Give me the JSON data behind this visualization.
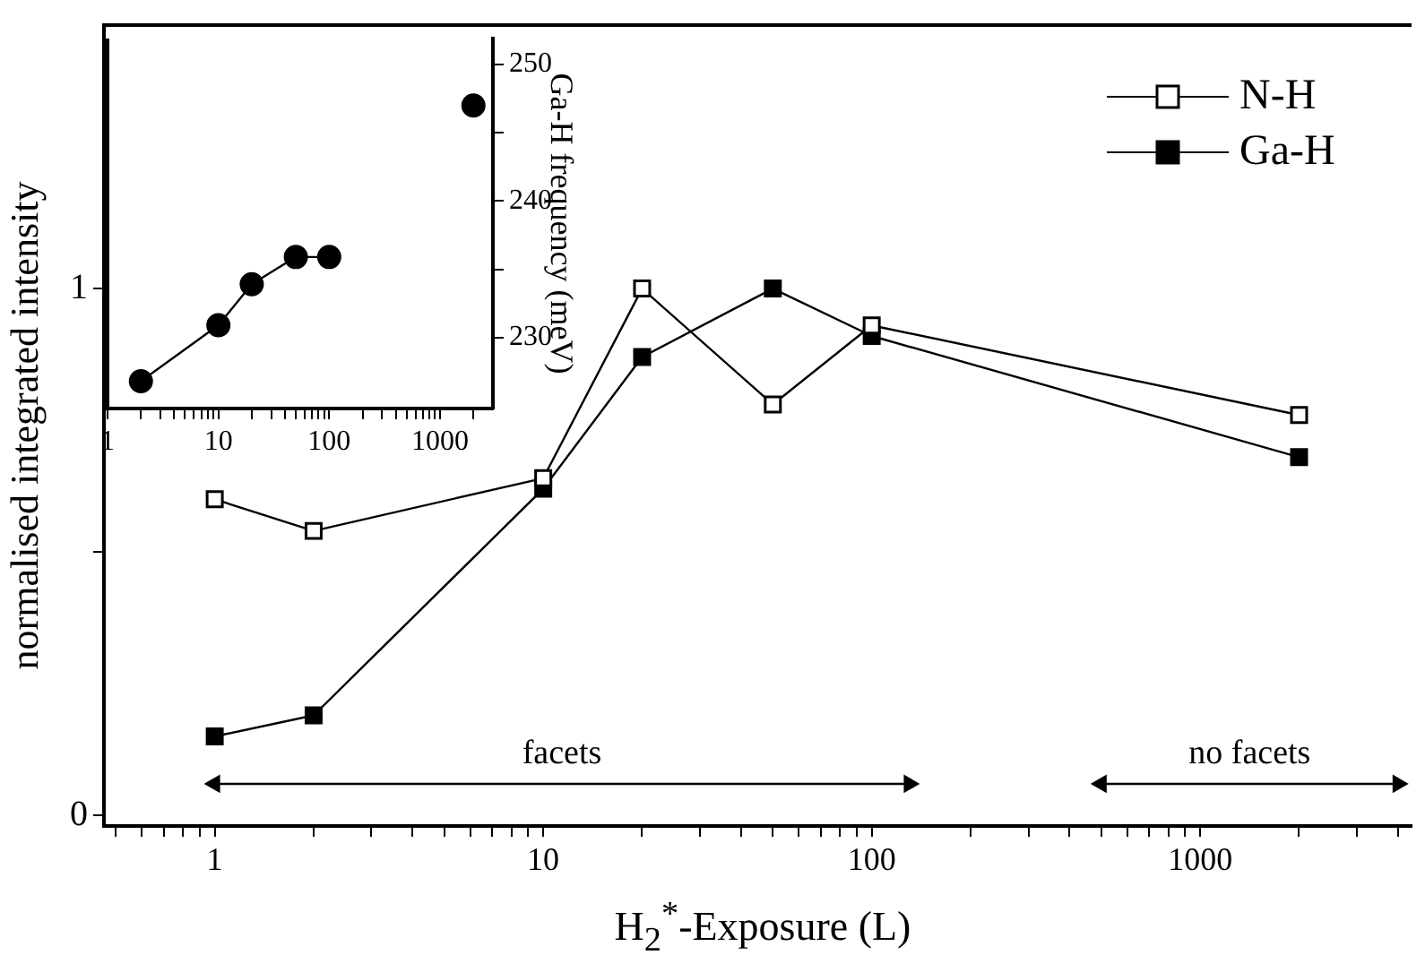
{
  "chart_data": [
    {
      "type": "line",
      "xlabel": "H$_{2}$$^{*}$-Exposure (L)",
      "ylabel": "normalised integrated intensity",
      "log": "x",
      "grid": false,
      "legend": "top right",
      "marker": "square",
      "x": [
        1,
        2,
        10,
        20,
        50,
        100,
        2000
      ],
      "series": [
        {
          "name": "N-H",
          "color": "#000000",
          "values": [
            0.6,
            0.54,
            0.64,
            1.0,
            0.78,
            0.93,
            0.76
          ]
        },
        {
          "name": "Ga-H",
          "color": "#000000",
          "values": [
            0.15,
            0.19,
            0.62,
            0.87,
            1.0,
            0.91,
            0.68
          ]
        },
        {
          "color": "#000000",
          "marker": "triangle",
          "x": [
            1,
            130
          ],
          "values": [
            0.06,
            0.06
          ]
        },
        {
          "color": "#000000",
          "marker": "triangle",
          "x": [
            500,
            4000
          ],
          "values": [
            0.06,
            0.06
          ]
        }
      ],
      "annotations": [
        {
          "text": "facets",
          "x": 11.4,
          "y": 0.06
        },
        {
          "text": "no facets",
          "x": 1414,
          "y": 0.06
        }
      ],
      "xlim": [
        0.46,
        4400
      ],
      "xticks": [
        {
          "value": 0.5,
          "label": null
        },
        {
          "value": 0.6,
          "label": null
        },
        {
          "value": 0.7,
          "label": null
        },
        {
          "value": 0.8,
          "label": null
        },
        {
          "value": 0.9,
          "label": null
        },
        1,
        {
          "value": 2,
          "label": null
        },
        {
          "value": 3,
          "label": null
        },
        {
          "value": 4,
          "label": null
        },
        {
          "value": 5,
          "label": null
        },
        {
          "value": 6,
          "label": null
        },
        {
          "value": 7,
          "label": null
        },
        {
          "value": 8,
          "label": null
        },
        {
          "value": 9,
          "label": null
        },
        10,
        {
          "value": 20,
          "label": null
        },
        {
          "value": 30,
          "label": null
        },
        {
          "value": 40,
          "label": null
        },
        {
          "value": 50,
          "label": null
        },
        {
          "value": 60,
          "label": null
        },
        {
          "value": 70,
          "label": null
        },
        {
          "value": 80,
          "label": null
        },
        {
          "value": 90,
          "label": null
        },
        100,
        {
          "value": 200,
          "label": null
        },
        {
          "value": 300,
          "label": null
        },
        {
          "value": 400,
          "label": null
        },
        {
          "value": 500,
          "label": null
        },
        {
          "value": 600,
          "label": null
        },
        {
          "value": 700,
          "label": null
        },
        {
          "value": 800,
          "label": null
        },
        {
          "value": 900,
          "label": null
        },
        1000,
        {
          "value": 2000,
          "label": null
        },
        {
          "value": 3000,
          "label": null
        },
        {
          "value": 4000,
          "label": null
        }
      ],
      "ylim": [
        -0.02,
        1.5
      ],
      "yticks": [
        0,
        {
          "value": 0.5,
          "label": null
        },
        1
      ]
    },
    {
      "type": "line",
      "log": "x",
      "grid": false,
      "marker": "circle",
      "y2label": "Ga-H frequency (meV)",
      "x": [
        2,
        10,
        20,
        50,
        100
      ],
      "series": [
        {
          "color": "#000000",
          "axis": "y2",
          "values": [
            226.8,
            230.9,
            233.9,
            235.9,
            235.9
          ]
        },
        {
          "type": "scatter",
          "color": "#000000",
          "axis": "y2",
          "x": [
            2000
          ],
          "values": [
            247.0
          ]
        }
      ],
      "xlim": [
        1,
        3000
      ],
      "xticks": [
        1,
        {
          "value": 2,
          "label": null
        },
        {
          "value": 3,
          "label": null
        },
        {
          "value": 4,
          "label": null
        },
        {
          "value": 5,
          "label": null
        },
        {
          "value": 6,
          "label": null
        },
        {
          "value": 7,
          "label": null
        },
        {
          "value": 8,
          "label": null
        },
        {
          "value": 9,
          "label": null
        },
        10,
        {
          "value": 20,
          "label": null
        },
        {
          "value": 30,
          "label": null
        },
        {
          "value": 40,
          "label": null
        },
        {
          "value": 50,
          "label": null
        },
        {
          "value": 60,
          "label": null
        },
        {
          "value": 70,
          "label": null
        },
        {
          "value": 80,
          "label": null
        },
        {
          "value": 90,
          "label": null
        },
        100,
        {
          "value": 200,
          "label": null
        },
        {
          "value": 300,
          "label": null
        },
        {
          "value": 400,
          "label": null
        },
        {
          "value": 500,
          "label": null
        },
        {
          "value": 600,
          "label": null
        },
        {
          "value": 700,
          "label": null
        },
        {
          "value": 800,
          "label": null
        },
        {
          "value": 900,
          "label": null
        },
        1000,
        {
          "value": 2000,
          "label": null
        }
      ],
      "y2lim": [
        224.8,
        251.9
      ],
      "y2ticks": [
        230,
        {
          "value": 235,
          "label": null
        },
        240,
        {
          "value": 245,
          "label": null
        },
        250
      ]
    }
  ]
}
